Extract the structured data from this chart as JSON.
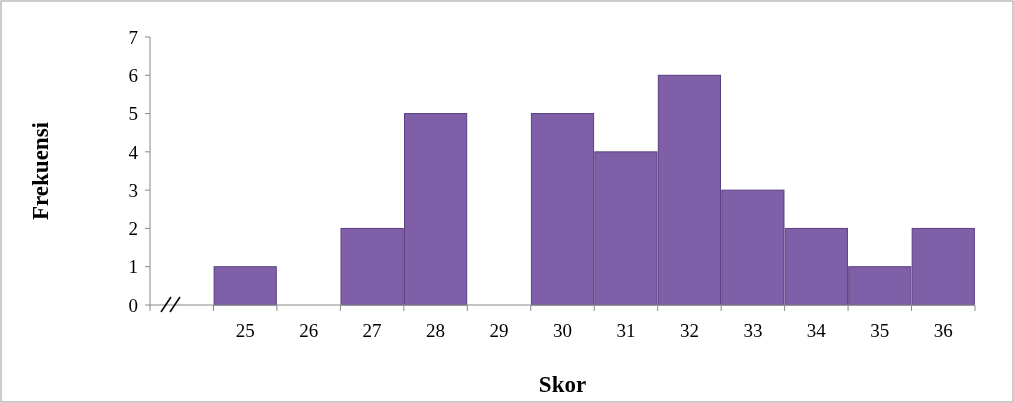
{
  "chart_data": {
    "type": "bar",
    "xlabel": "Skor",
    "ylabel": "Frekuensi",
    "categories": [
      null,
      "25",
      "26",
      "27",
      "28",
      "29",
      "30",
      "31",
      "32",
      "33",
      "34",
      "35",
      "36"
    ],
    "values": [
      null,
      1,
      0,
      2,
      5,
      0,
      5,
      4,
      6,
      3,
      2,
      1,
      2
    ],
    "color": "#7f5fa8",
    "ylim": [
      0,
      7
    ],
    "yticks": [
      0,
      1,
      2,
      3,
      4,
      5,
      6,
      7
    ],
    "grid": false
  }
}
